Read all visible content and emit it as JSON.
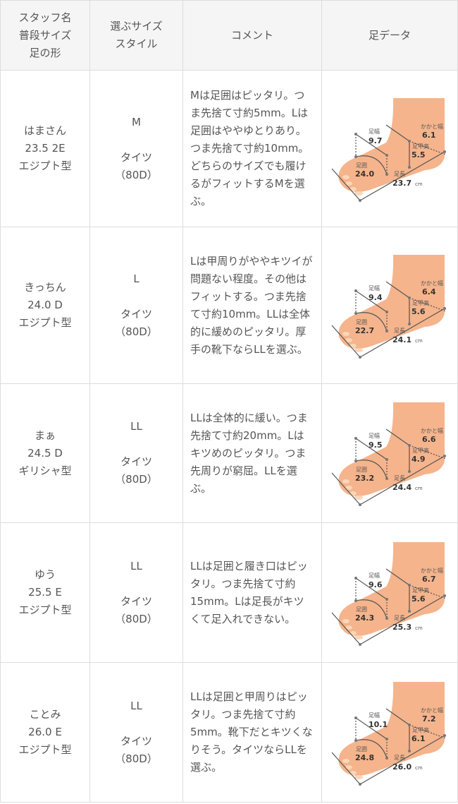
{
  "header": {
    "col1": [
      "スタッフ名",
      "普段サイズ",
      "足の形"
    ],
    "col2": [
      "選ぶサイズ",
      "スタイル"
    ],
    "col3": "コメント",
    "col4": "足データ"
  },
  "foot_labels": {
    "width": "足幅",
    "heel": "かかと幅",
    "instep": "足甲高",
    "girth": "足囲",
    "length": "足長",
    "unit": "cm"
  },
  "colors": {
    "skin": "#f5b48c",
    "line": "#555555",
    "border": "#dddddd",
    "header_bg": "#f5f5f5"
  },
  "rows": [
    {
      "name": "はまさん",
      "usual": "23.5 2E",
      "shape": "エジプト型",
      "size": "M",
      "style": "タイツ",
      "style2": "（80D）",
      "comment": "Mは足囲はピッタリ。つま先捨て寸約5mm。Lは足囲はややゆとりあり。つま先捨て寸約10mm。どちらのサイズでも履けるがフィットするMを選ぶ。",
      "foot": {
        "width": "9.7",
        "heel": "6.1",
        "instep": "5.5",
        "girth": "24.0",
        "length": "23.7"
      }
    },
    {
      "name": "きっちん",
      "usual": "24.0 D",
      "shape": "エジプト型",
      "size": "L",
      "style": "タイツ",
      "style2": "（80D）",
      "comment": "Lは甲周りがややキツイが問題ない程度。その他はフィットする。つま先捨て寸約10mm。LLは全体的に緩めのピッタリ。厚手の靴下ならLLを選ぶ。",
      "foot": {
        "width": "9.4",
        "heel": "6.4",
        "instep": "5.6",
        "girth": "22.7",
        "length": "24.1"
      }
    },
    {
      "name": "まぁ",
      "usual": "24.5 D",
      "shape": "ギリシャ型",
      "size": "LL",
      "style": "タイツ",
      "style2": "（80D）",
      "comment": "LLは全体的に緩い。つま先捨て寸約20mm。Lはキツめのピッタリ。つま先周りが窮屈。LLを選ぶ。",
      "foot": {
        "width": "9.5",
        "heel": "6.6",
        "instep": "4.9",
        "girth": "23.2",
        "length": "24.4"
      }
    },
    {
      "name": "ゆう",
      "usual": "25.5 E",
      "shape": "エジプト型",
      "size": "LL",
      "style": "タイツ",
      "style2": "（80D）",
      "comment": "LLは足囲と履き口はピッタリ。つま先捨て寸約15mm。Lは足長がキツくて足入れできない。",
      "foot": {
        "width": "9.6",
        "heel": "6.7",
        "instep": "5.6",
        "girth": "24.3",
        "length": "25.3"
      }
    },
    {
      "name": "ことみ",
      "usual": "26.0 E",
      "shape": "エジプト型",
      "size": "LL",
      "style": "タイツ",
      "style2": "（80D）",
      "comment": "LLは足囲と甲周りはピッタリ。つま先捨て寸約5mm。靴下だとキツくなりそう。タイツならLLを選ぶ。",
      "foot": {
        "width": "10.1",
        "heel": "7.2",
        "instep": "6.1",
        "girth": "24.8",
        "length": "26.0"
      }
    }
  ]
}
